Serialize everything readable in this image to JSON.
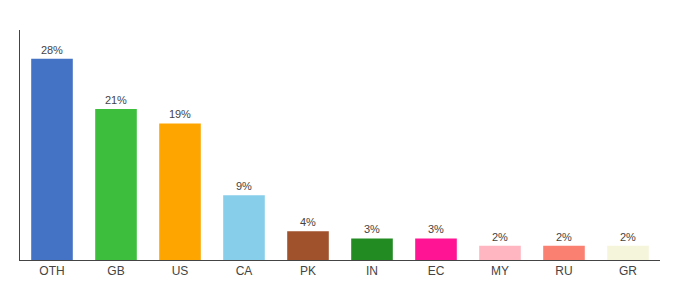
{
  "chart_data": {
    "type": "bar",
    "categories": [
      "OTH",
      "GB",
      "US",
      "CA",
      "PK",
      "IN",
      "EC",
      "MY",
      "RU",
      "GR"
    ],
    "values": [
      28,
      21,
      19,
      9,
      4,
      3,
      3,
      2,
      2,
      2
    ],
    "value_labels": [
      "28%",
      "21%",
      "19%",
      "9%",
      "4%",
      "3%",
      "3%",
      "2%",
      "2%",
      "2%"
    ],
    "colors": [
      "#4472C4",
      "#3DBF3D",
      "#FFA500",
      "#87CEEB",
      "#A0522D",
      "#228B22",
      "#FF1493",
      "#FFB6C1",
      "#FA8072",
      "#F5F5DC"
    ],
    "ylim": [
      0,
      32
    ],
    "data_labels": true,
    "tick_labels": "x",
    "grid": false
  }
}
